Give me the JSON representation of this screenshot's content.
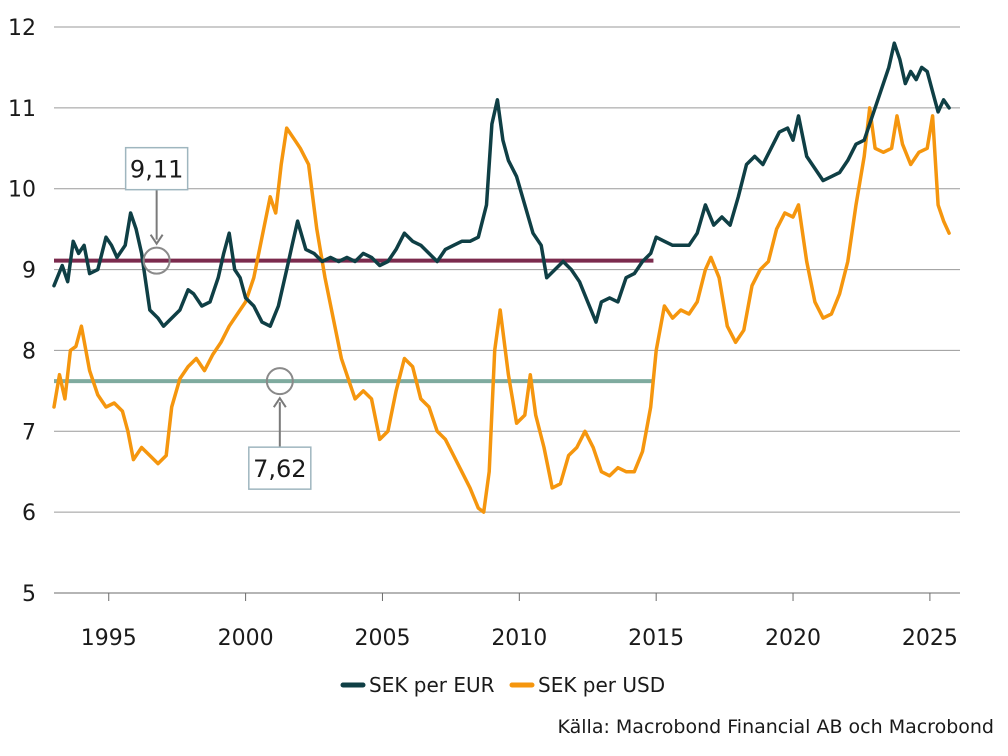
{
  "chart_data": {
    "type": "line",
    "title": "",
    "xlabel": "",
    "ylabel": "",
    "xlim": [
      1993.0,
      2026.1
    ],
    "ylim": [
      5,
      12
    ],
    "x_ticks": [
      1995,
      2000,
      2005,
      2010,
      2015,
      2020,
      2025
    ],
    "y_ticks": [
      5,
      6,
      7,
      8,
      9,
      10,
      11,
      12
    ],
    "grid": "horizontal",
    "legend_position": "bottom",
    "series": [
      {
        "name": "SEK per EUR",
        "color": "#0f3f45",
        "points": [
          [
            1993.0,
            8.8
          ],
          [
            1993.3,
            9.05
          ],
          [
            1993.5,
            8.85
          ],
          [
            1993.7,
            9.35
          ],
          [
            1993.9,
            9.2
          ],
          [
            1994.1,
            9.3
          ],
          [
            1994.3,
            8.95
          ],
          [
            1994.6,
            9.0
          ],
          [
            1994.9,
            9.4
          ],
          [
            1995.1,
            9.3
          ],
          [
            1995.3,
            9.15
          ],
          [
            1995.6,
            9.3
          ],
          [
            1995.8,
            9.7
          ],
          [
            1996.0,
            9.5
          ],
          [
            1996.2,
            9.2
          ],
          [
            1996.5,
            8.5
          ],
          [
            1996.8,
            8.4
          ],
          [
            1997.0,
            8.3
          ],
          [
            1997.3,
            8.4
          ],
          [
            1997.6,
            8.5
          ],
          [
            1997.9,
            8.75
          ],
          [
            1998.1,
            8.7
          ],
          [
            1998.4,
            8.55
          ],
          [
            1998.7,
            8.6
          ],
          [
            1999.0,
            8.9
          ],
          [
            1999.2,
            9.2
          ],
          [
            1999.4,
            9.45
          ],
          [
            1999.6,
            9.0
          ],
          [
            1999.8,
            8.9
          ],
          [
            2000.0,
            8.65
          ],
          [
            2000.3,
            8.55
          ],
          [
            2000.6,
            8.35
          ],
          [
            2000.9,
            8.3
          ],
          [
            2001.2,
            8.55
          ],
          [
            2001.5,
            9.0
          ],
          [
            2001.7,
            9.3
          ],
          [
            2001.9,
            9.6
          ],
          [
            2002.2,
            9.25
          ],
          [
            2002.5,
            9.2
          ],
          [
            2002.8,
            9.1
          ],
          [
            2003.1,
            9.15
          ],
          [
            2003.4,
            9.1
          ],
          [
            2003.7,
            9.15
          ],
          [
            2004.0,
            9.1
          ],
          [
            2004.3,
            9.2
          ],
          [
            2004.6,
            9.15
          ],
          [
            2004.9,
            9.05
          ],
          [
            2005.2,
            9.1
          ],
          [
            2005.5,
            9.25
          ],
          [
            2005.8,
            9.45
          ],
          [
            2006.1,
            9.35
          ],
          [
            2006.4,
            9.3
          ],
          [
            2006.7,
            9.2
          ],
          [
            2007.0,
            9.1
          ],
          [
            2007.3,
            9.25
          ],
          [
            2007.6,
            9.3
          ],
          [
            2007.9,
            9.35
          ],
          [
            2008.2,
            9.35
          ],
          [
            2008.5,
            9.4
          ],
          [
            2008.8,
            9.8
          ],
          [
            2009.0,
            10.8
          ],
          [
            2009.2,
            11.1
          ],
          [
            2009.4,
            10.6
          ],
          [
            2009.6,
            10.35
          ],
          [
            2009.9,
            10.15
          ],
          [
            2010.2,
            9.8
          ],
          [
            2010.5,
            9.45
          ],
          [
            2010.8,
            9.3
          ],
          [
            2011.0,
            8.9
          ],
          [
            2011.3,
            9.0
          ],
          [
            2011.6,
            9.1
          ],
          [
            2011.9,
            9.0
          ],
          [
            2012.2,
            8.85
          ],
          [
            2012.5,
            8.6
          ],
          [
            2012.8,
            8.35
          ],
          [
            2013.0,
            8.6
          ],
          [
            2013.3,
            8.65
          ],
          [
            2013.6,
            8.6
          ],
          [
            2013.9,
            8.9
          ],
          [
            2014.2,
            8.95
          ],
          [
            2014.5,
            9.1
          ],
          [
            2014.8,
            9.2
          ],
          [
            2015.0,
            9.4
          ],
          [
            2015.3,
            9.35
          ],
          [
            2015.6,
            9.3
          ],
          [
            2015.9,
            9.3
          ],
          [
            2016.2,
            9.3
          ],
          [
            2016.5,
            9.45
          ],
          [
            2016.8,
            9.8
          ],
          [
            2017.1,
            9.55
          ],
          [
            2017.4,
            9.65
          ],
          [
            2017.7,
            9.55
          ],
          [
            2018.0,
            9.9
          ],
          [
            2018.3,
            10.3
          ],
          [
            2018.6,
            10.4
          ],
          [
            2018.9,
            10.3
          ],
          [
            2019.2,
            10.5
          ],
          [
            2019.5,
            10.7
          ],
          [
            2019.8,
            10.75
          ],
          [
            2020.0,
            10.6
          ],
          [
            2020.2,
            10.9
          ],
          [
            2020.5,
            10.4
          ],
          [
            2020.8,
            10.25
          ],
          [
            2021.1,
            10.1
          ],
          [
            2021.4,
            10.15
          ],
          [
            2021.7,
            10.2
          ],
          [
            2022.0,
            10.35
          ],
          [
            2022.3,
            10.55
          ],
          [
            2022.6,
            10.6
          ],
          [
            2022.9,
            10.9
          ],
          [
            2023.2,
            11.2
          ],
          [
            2023.5,
            11.5
          ],
          [
            2023.7,
            11.8
          ],
          [
            2023.9,
            11.6
          ],
          [
            2024.1,
            11.3
          ],
          [
            2024.3,
            11.45
          ],
          [
            2024.5,
            11.35
          ],
          [
            2024.7,
            11.5
          ],
          [
            2024.9,
            11.45
          ],
          [
            2025.1,
            11.2
          ],
          [
            2025.3,
            10.95
          ],
          [
            2025.5,
            11.1
          ],
          [
            2025.7,
            11.0
          ]
        ]
      },
      {
        "name": "SEK per USD",
        "color": "#f5960e",
        "points": [
          [
            1993.0,
            7.3
          ],
          [
            1993.2,
            7.7
          ],
          [
            1993.4,
            7.4
          ],
          [
            1993.6,
            8.0
          ],
          [
            1993.8,
            8.05
          ],
          [
            1994.0,
            8.3
          ],
          [
            1994.3,
            7.75
          ],
          [
            1994.6,
            7.45
          ],
          [
            1994.9,
            7.3
          ],
          [
            1995.2,
            7.35
          ],
          [
            1995.5,
            7.25
          ],
          [
            1995.7,
            7.0
          ],
          [
            1995.9,
            6.65
          ],
          [
            1996.2,
            6.8
          ],
          [
            1996.5,
            6.7
          ],
          [
            1996.8,
            6.6
          ],
          [
            1997.1,
            6.7
          ],
          [
            1997.3,
            7.3
          ],
          [
            1997.6,
            7.65
          ],
          [
            1997.9,
            7.8
          ],
          [
            1998.2,
            7.9
          ],
          [
            1998.5,
            7.75
          ],
          [
            1998.8,
            7.95
          ],
          [
            1999.1,
            8.1
          ],
          [
            1999.4,
            8.3
          ],
          [
            1999.7,
            8.45
          ],
          [
            2000.0,
            8.6
          ],
          [
            2000.3,
            8.9
          ],
          [
            2000.6,
            9.4
          ],
          [
            2000.9,
            9.9
          ],
          [
            2001.1,
            9.7
          ],
          [
            2001.3,
            10.3
          ],
          [
            2001.5,
            10.75
          ],
          [
            2001.8,
            10.6
          ],
          [
            2002.0,
            10.5
          ],
          [
            2002.3,
            10.3
          ],
          [
            2002.6,
            9.5
          ],
          [
            2002.9,
            8.9
          ],
          [
            2003.2,
            8.4
          ],
          [
            2003.5,
            7.9
          ],
          [
            2003.8,
            7.6
          ],
          [
            2004.0,
            7.4
          ],
          [
            2004.3,
            7.5
          ],
          [
            2004.6,
            7.4
          ],
          [
            2004.9,
            6.9
          ],
          [
            2005.2,
            7.0
          ],
          [
            2005.5,
            7.5
          ],
          [
            2005.8,
            7.9
          ],
          [
            2006.1,
            7.8
          ],
          [
            2006.4,
            7.4
          ],
          [
            2006.7,
            7.3
          ],
          [
            2007.0,
            7.0
          ],
          [
            2007.3,
            6.9
          ],
          [
            2007.6,
            6.7
          ],
          [
            2007.9,
            6.5
          ],
          [
            2008.2,
            6.3
          ],
          [
            2008.5,
            6.05
          ],
          [
            2008.7,
            6.0
          ],
          [
            2008.9,
            6.5
          ],
          [
            2009.1,
            8.0
          ],
          [
            2009.3,
            8.5
          ],
          [
            2009.6,
            7.7
          ],
          [
            2009.9,
            7.1
          ],
          [
            2010.2,
            7.2
          ],
          [
            2010.4,
            7.7
          ],
          [
            2010.6,
            7.2
          ],
          [
            2010.9,
            6.8
          ],
          [
            2011.2,
            6.3
          ],
          [
            2011.5,
            6.35
          ],
          [
            2011.8,
            6.7
          ],
          [
            2012.1,
            6.8
          ],
          [
            2012.4,
            7.0
          ],
          [
            2012.7,
            6.8
          ],
          [
            2013.0,
            6.5
          ],
          [
            2013.3,
            6.45
          ],
          [
            2013.6,
            6.55
          ],
          [
            2013.9,
            6.5
          ],
          [
            2014.2,
            6.5
          ],
          [
            2014.5,
            6.75
          ],
          [
            2014.8,
            7.3
          ],
          [
            2015.0,
            8.0
          ],
          [
            2015.3,
            8.55
          ],
          [
            2015.6,
            8.4
          ],
          [
            2015.9,
            8.5
          ],
          [
            2016.2,
            8.45
          ],
          [
            2016.5,
            8.6
          ],
          [
            2016.8,
            9.0
          ],
          [
            2017.0,
            9.15
          ],
          [
            2017.3,
            8.9
          ],
          [
            2017.6,
            8.3
          ],
          [
            2017.9,
            8.1
          ],
          [
            2018.2,
            8.25
          ],
          [
            2018.5,
            8.8
          ],
          [
            2018.8,
            9.0
          ],
          [
            2019.1,
            9.1
          ],
          [
            2019.4,
            9.5
          ],
          [
            2019.7,
            9.7
          ],
          [
            2020.0,
            9.65
          ],
          [
            2020.2,
            9.8
          ],
          [
            2020.5,
            9.1
          ],
          [
            2020.8,
            8.6
          ],
          [
            2021.1,
            8.4
          ],
          [
            2021.4,
            8.45
          ],
          [
            2021.7,
            8.7
          ],
          [
            2022.0,
            9.1
          ],
          [
            2022.3,
            9.8
          ],
          [
            2022.6,
            10.4
          ],
          [
            2022.8,
            11.0
          ],
          [
            2023.0,
            10.5
          ],
          [
            2023.3,
            10.45
          ],
          [
            2023.6,
            10.5
          ],
          [
            2023.8,
            10.9
          ],
          [
            2024.0,
            10.55
          ],
          [
            2024.3,
            10.3
          ],
          [
            2024.6,
            10.45
          ],
          [
            2024.9,
            10.5
          ],
          [
            2025.1,
            10.9
          ],
          [
            2025.3,
            9.8
          ],
          [
            2025.5,
            9.6
          ],
          [
            2025.7,
            9.45
          ]
        ]
      }
    ],
    "reference_lines": [
      {
        "value": 9.11,
        "x_end": 2014.9,
        "color": "#7b2a4d"
      },
      {
        "value": 7.62,
        "x_end": 2014.9,
        "color": "#7fab9f"
      }
    ],
    "annotations": [
      {
        "label": "9,11",
        "x": 1996.75,
        "y": 9.11,
        "box_position": "above"
      },
      {
        "label": "7,62",
        "x": 2001.25,
        "y": 7.62,
        "box_position": "below"
      }
    ]
  },
  "source": "Källa: Macrobond Financial AB och Macrobond"
}
